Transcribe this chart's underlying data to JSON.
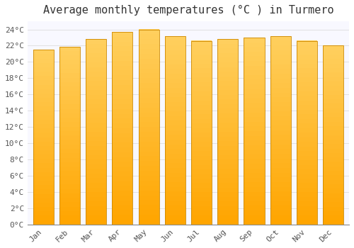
{
  "title": "Average monthly temperatures (°C ) in Turmero",
  "months": [
    "Jan",
    "Feb",
    "Mar",
    "Apr",
    "May",
    "Jun",
    "Jul",
    "Aug",
    "Sep",
    "Oct",
    "Nov",
    "Dec"
  ],
  "values": [
    21.5,
    21.9,
    22.8,
    23.7,
    24.0,
    23.2,
    22.6,
    22.8,
    23.0,
    23.2,
    22.6,
    22.0
  ],
  "bar_color_main": "#FFA500",
  "bar_color_light": "#FFD060",
  "bar_edge_color": "#CC8800",
  "background_color": "#FFFFFF",
  "plot_bg_color": "#F8F8FF",
  "grid_color": "#DDDDDD",
  "ylim": [
    0,
    25
  ],
  "ytick_step": 2,
  "title_fontsize": 11,
  "tick_fontsize": 8,
  "font_family": "monospace",
  "tick_color": "#555555",
  "title_color": "#333333"
}
